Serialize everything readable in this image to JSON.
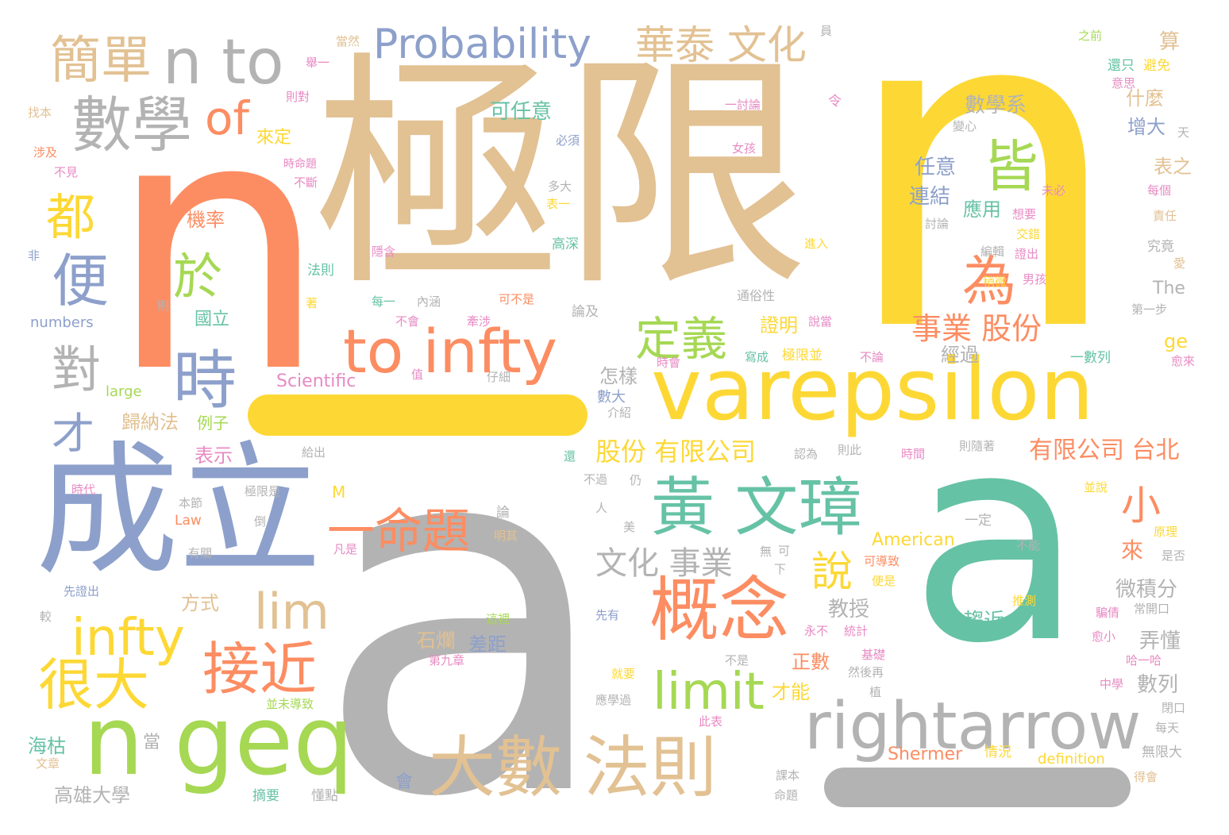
{
  "palette": {
    "gold": "#fdd835",
    "tan": "#e2c193",
    "orange": "#fc8d62",
    "periwinkle": "#8da0cb",
    "teal": "#66c2a5",
    "lime": "#a6d854",
    "gray": "#b3b3b3",
    "pink": "#e78ac3"
  },
  "words": {
    "w1": "n",
    "w2": "n",
    "w3": "a",
    "w4": "a",
    "w5": "極限",
    "w6": "成立",
    "w7": "varepsilon",
    "w8": "rightarrow",
    "w9": "n geq",
    "w10": "黃 文璋",
    "w11": "大數 法則",
    "w12": "to infty",
    "w13": "概念",
    "w14": "數學",
    "w15": "n to",
    "w16": "簡單",
    "w17": "Probability",
    "w18": "華泰 文化",
    "w19": "一命題",
    "w20": "infty",
    "w21": "很大",
    "w22": "接近",
    "w23": "limit",
    "w24": "lim",
    "w25": "時",
    "w26": "皆",
    "w27": "為",
    "w28": "定義",
    "w29": "of",
    "w30": "便",
    "w31": "於",
    "w32": "都",
    "w33": "對",
    "w34": "才",
    "w35": "說",
    "w36": "小",
    "w37": "文化 事業",
    "w38": "事業 股份",
    "w39": "股份 有限公司",
    "w40": "有限公司 台北",
    "w41": "數學系",
    "w42": "可任意",
    "w43": "什麼",
    "w44": "增大",
    "w45": "任意",
    "w46": "表之",
    "w47": "連結",
    "w48": "應用",
    "w49": "機率",
    "w50": "證明",
    "w51": "經過",
    "w52": "國立",
    "w53": "怎樣",
    "w54": "數大",
    "w55": "歸納法",
    "w56": "例子",
    "w57": "表示",
    "w58": "方式",
    "w59": "教授",
    "w60": "微積分",
    "w61": "趨近",
    "w62": "弄懂",
    "w63": "數列",
    "w64": "來",
    "w65": "正數",
    "w66": "才能",
    "w67": "石爛",
    "w68": "差距",
    "w69": "海枯",
    "w70": "高雄大學",
    "w71": "Shermer",
    "w72": "definition",
    "w73": "American",
    "w74": "Scientific",
    "w75": "numbers",
    "w76": "large",
    "w77": "The",
    "w78": "ge",
    "w79": "Law",
    "w80": "M",
    "w81": "算",
    "w82": "之前",
    "w83": "還只",
    "w84": "避免",
    "w85": "意思",
    "w86": "則對",
    "w87": "找本",
    "w88": "涉及",
    "w89": "不見",
    "w90": "來定",
    "w91": "當然",
    "w92": "舉一",
    "w93": "一討論",
    "w94": "女孩",
    "w95": "必須",
    "w96": "多大",
    "w97": "表一",
    "w98": "高深",
    "w99": "隱含",
    "w100": "法則",
    "w101": "內涵",
    "w102": "每一",
    "w103": "論及",
    "w104": "可不是",
    "w105": "通俗性",
    "w106": "說當",
    "w107": "寫成",
    "w108": "極限並",
    "w109": "不論",
    "w110": "一數列",
    "w111": "第一步",
    "w112": "究竟",
    "w113": "愛",
    "w114": "男孩",
    "w115": "稍微",
    "w116": "編輯",
    "w117": "進入",
    "w118": "證出",
    "w119": "交錯",
    "w120": "想要",
    "w121": "未必",
    "w122": "討論",
    "w123": "變心",
    "w124": "每個",
    "w125": "責任",
    "w126": "天",
    "w127": "令",
    "w128": "員",
    "w129": "時命題",
    "w130": "不斷",
    "w131": "非",
    "w132": "則",
    "w133": "著",
    "w134": "不會",
    "w135": "牽涉",
    "w136": "值",
    "w137": "仔細",
    "w138": "時會",
    "w139": "介紹",
    "w140": "給出",
    "w141": "時代",
    "w142": "本節",
    "w143": "極限是",
    "w144": "倒",
    "w145": "有關",
    "w146": "凡是",
    "w147": "明其",
    "w148": "論",
    "w149": "人",
    "w150": "美",
    "w151": "不過",
    "w152": "仍",
    "w153": "還",
    "w154": "認為",
    "w155": "則此",
    "w156": "時間",
    "w157": "則隨著",
    "w158": "並說",
    "w159": "原理",
    "w160": "是否",
    "w161": "一定",
    "w162": "不能",
    "w163": "無",
    "w164": "可",
    "w165": "下",
    "w166": "可導致",
    "w167": "便是",
    "w168": "推測",
    "w169": "騙倩",
    "w170": "常開口",
    "w171": "愈小",
    "w172": "哈一哈",
    "w173": "中學",
    "w174": "閉口",
    "w175": "每天",
    "w176": "無限大",
    "w177": "得會",
    "w178": "愈來",
    "w179": "先證出",
    "w180": "較",
    "w181": "先有",
    "w182": "永不",
    "w183": "統計",
    "w184": "基礎",
    "w185": "然後再",
    "w186": "植",
    "w187": "不是",
    "w188": "就要",
    "w189": "應學過",
    "w190": "此表",
    "w191": "情況",
    "w192": "課本",
    "w193": "命題",
    "w194": "並未導致",
    "w195": "第九章",
    "w196": "這裡",
    "w197": "當",
    "w198": "會",
    "w199": "摘要",
    "w200": "懂點",
    "w201": "文章"
  }
}
